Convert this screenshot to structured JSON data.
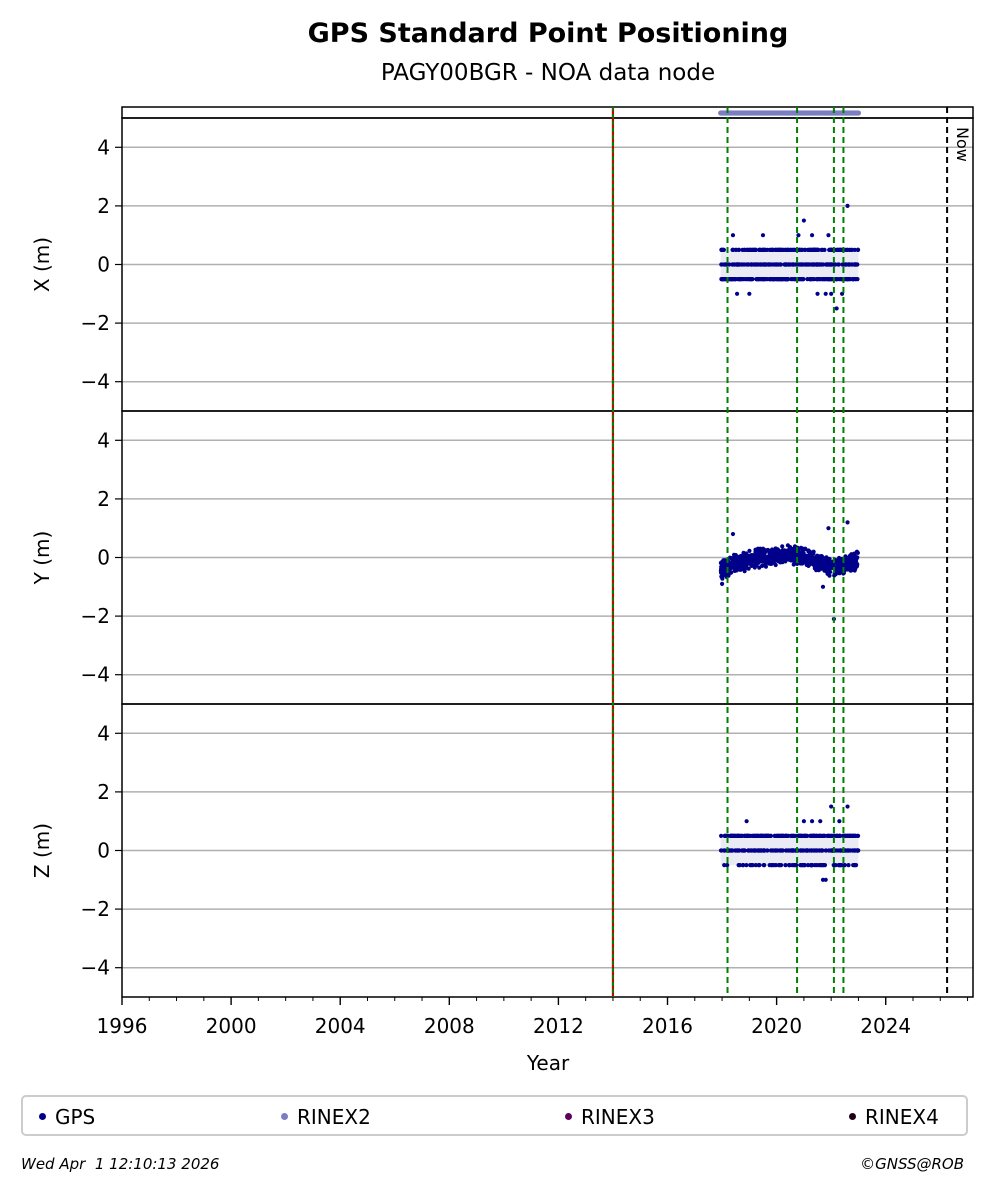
{
  "colors": {
    "gps": "#00008b",
    "rinex2": "#7b7fc0",
    "rinex3": "#5c0060",
    "rinex4": "#200018",
    "green_line": "#007f00",
    "red_line": "#cc0000",
    "grid": "#b0b0b0"
  },
  "footer": {
    "timestamp": "Wed Apr  1 12:10:13 2026",
    "credit": "©GNSS@ROB"
  },
  "chart_data": {
    "type": "scatter",
    "title": "GPS Standard Point Positioning",
    "subtitle": "PAGY00BGR - NOA data node",
    "xlabel": "Year",
    "xlim": [
      1996,
      2027.2
    ],
    "x_ticks": [
      1996,
      2000,
      2004,
      2008,
      2012,
      2016,
      2020,
      2024
    ],
    "x_tick_labels": [
      "1996",
      "2000",
      "2004",
      "2008",
      "2012",
      "2016",
      "2020",
      "2024"
    ],
    "grid": true,
    "legend_position": "bottom",
    "legend": [
      "GPS",
      "RINEX2",
      "RINEX3",
      "RINEX4"
    ],
    "now_label": "Now",
    "now_line_x": 2026.25,
    "red_line_x": 2014.0,
    "green_lines_x": [
      2018.2,
      2020.75,
      2022.1,
      2022.45
    ],
    "data_span": [
      2017.95,
      2023.0
    ],
    "rinex2_span": [
      2017.95,
      2023.0
    ],
    "panels": [
      {
        "ylabel": "X (m)",
        "ylim": [
          -5,
          5
        ],
        "y_ticks": [
          4,
          2,
          0,
          -2,
          -4
        ],
        "y_tick_labels": [
          "4",
          "2",
          "0",
          "−2",
          "−4"
        ],
        "levels": [
          0.5,
          0,
          -0.5
        ],
        "level_density": [
          0.55,
          0.75,
          0.7
        ],
        "outliers": [
          {
            "x": 2018.4,
            "y": 1.0
          },
          {
            "x": 2019.5,
            "y": 1.0
          },
          {
            "x": 2020.8,
            "y": 1.0
          },
          {
            "x": 2021.0,
            "y": 1.5
          },
          {
            "x": 2021.3,
            "y": 1.0
          },
          {
            "x": 2021.9,
            "y": 1.0
          },
          {
            "x": 2022.6,
            "y": 2.0
          },
          {
            "x": 2018.55,
            "y": -1.0
          },
          {
            "x": 2019.0,
            "y": -1.0
          },
          {
            "x": 2021.5,
            "y": -1.0
          },
          {
            "x": 2021.8,
            "y": -1.0
          },
          {
            "x": 2022.0,
            "y": -1.0
          },
          {
            "x": 2022.2,
            "y": -1.5
          },
          {
            "x": 2022.4,
            "y": -1.0
          }
        ]
      },
      {
        "ylabel": "Y (m)",
        "ylim": [
          -5,
          5
        ],
        "y_ticks": [
          4,
          2,
          0,
          -2,
          -4
        ],
        "y_tick_labels": [
          "4",
          "2",
          "0",
          "−2",
          "−4"
        ],
        "trend": [
          [
            2017.95,
            -0.45
          ],
          [
            2018.5,
            -0.2
          ],
          [
            2019.5,
            0.0
          ],
          [
            2020.5,
            0.1
          ],
          [
            2021.0,
            0.05
          ],
          [
            2021.5,
            -0.15
          ],
          [
            2022.0,
            -0.35
          ],
          [
            2022.5,
            -0.25
          ],
          [
            2023.0,
            -0.1
          ]
        ],
        "spread": 0.35,
        "outliers": [
          {
            "x": 2018.4,
            "y": 0.8
          },
          {
            "x": 2021.9,
            "y": 1.0
          },
          {
            "x": 2022.1,
            "y": -2.1
          },
          {
            "x": 2022.6,
            "y": 1.2
          },
          {
            "x": 2018.0,
            "y": -0.9
          },
          {
            "x": 2021.7,
            "y": -1.0
          }
        ]
      },
      {
        "ylabel": "Z (m)",
        "ylim": [
          -5,
          5
        ],
        "y_ticks": [
          4,
          2,
          0,
          -2,
          -4
        ],
        "y_tick_labels": [
          "4",
          "2",
          "0",
          "−2",
          "−4"
        ],
        "levels": [
          0.5,
          0,
          -0.5
        ],
        "level_density": [
          0.75,
          0.75,
          0.25
        ],
        "outliers": [
          {
            "x": 2018.9,
            "y": 1.0
          },
          {
            "x": 2021.0,
            "y": 1.0
          },
          {
            "x": 2021.3,
            "y": 1.0
          },
          {
            "x": 2021.6,
            "y": 1.0
          },
          {
            "x": 2022.0,
            "y": 1.5
          },
          {
            "x": 2022.3,
            "y": 1.0
          },
          {
            "x": 2022.6,
            "y": 1.5
          },
          {
            "x": 2021.7,
            "y": -1.0
          },
          {
            "x": 2021.8,
            "y": -1.0
          }
        ]
      }
    ]
  }
}
